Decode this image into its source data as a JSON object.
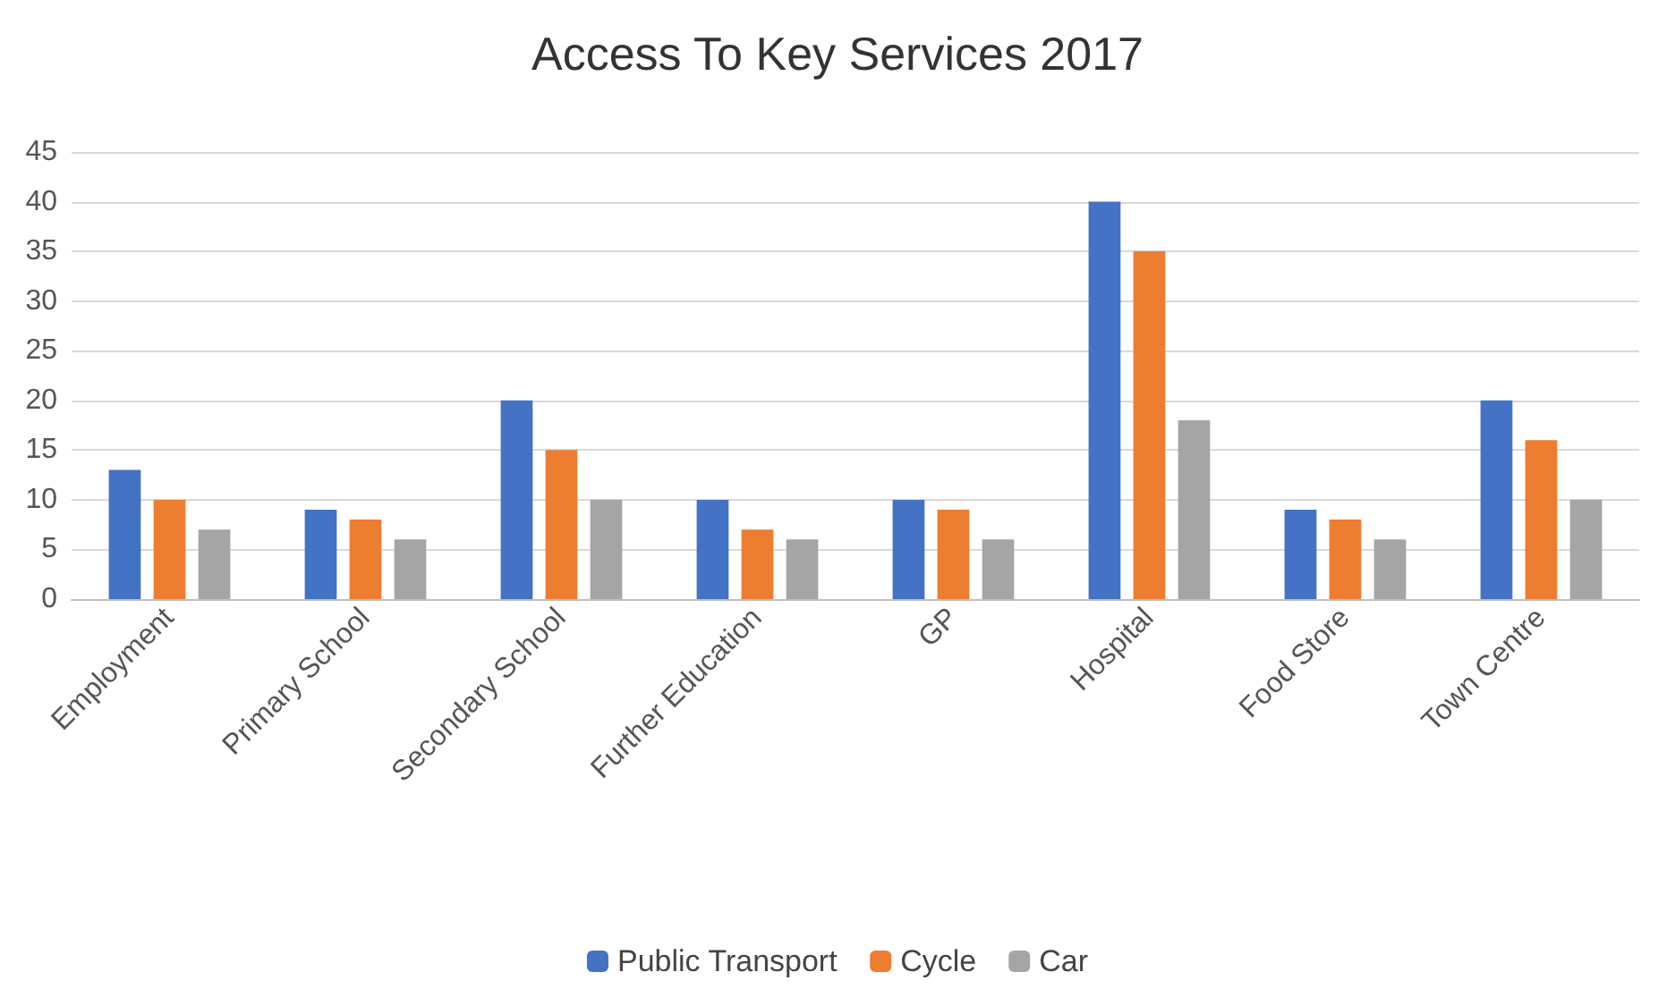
{
  "chart_data": {
    "type": "bar",
    "title": "Access To Key Services 2017",
    "categories": [
      "Employment",
      "Primary School",
      "Secondary School",
      "Further Education",
      "GP",
      "Hospital",
      "Food Store",
      "Town Centre"
    ],
    "series": [
      {
        "name": "Public Transport",
        "color": "#4472c4",
        "values": [
          13,
          9,
          20,
          10,
          10,
          40,
          9,
          20
        ]
      },
      {
        "name": "Cycle",
        "color": "#ed7d31",
        "values": [
          10,
          8,
          15,
          7,
          9,
          35,
          8,
          16
        ]
      },
      {
        "name": "Car",
        "color": "#a5a5a5",
        "values": [
          7,
          6,
          10,
          6,
          6,
          18,
          6,
          10
        ]
      }
    ],
    "ylim": [
      0,
      45
    ],
    "yticks": [
      0,
      5,
      10,
      15,
      20,
      25,
      30,
      35,
      40,
      45
    ],
    "grid": "y",
    "legend": "bottom"
  }
}
